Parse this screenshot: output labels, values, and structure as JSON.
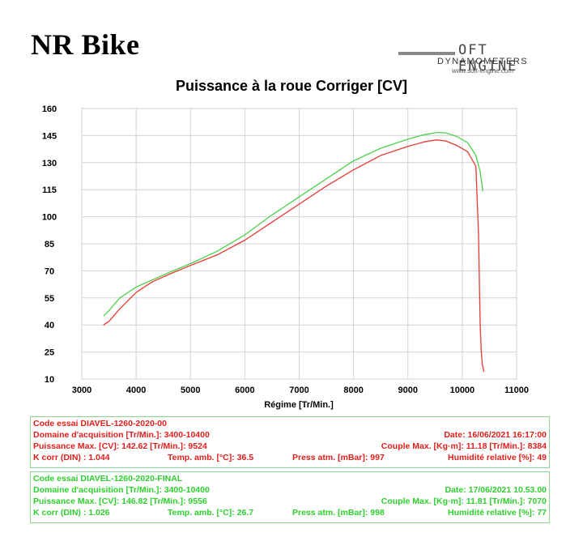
{
  "header": {
    "brand": "NR Bike",
    "logo_name": "OFT ENGINE",
    "logo_sub": "DYNAMOMETERS",
    "logo_url": "www.soft-engine.com"
  },
  "chart_data": {
    "type": "line",
    "title": "Puissance à la roue Corriger [CV]",
    "xlabel": "Régime [Tr/Min.]",
    "ylabel": "",
    "xlim": [
      3000,
      11000
    ],
    "ylim": [
      10,
      160
    ],
    "xticks": [
      3000,
      4000,
      5000,
      6000,
      7000,
      8000,
      9000,
      10000,
      11000
    ],
    "yticks": [
      10,
      25,
      40,
      55,
      70,
      85,
      100,
      115,
      130,
      145,
      160
    ],
    "grid": true,
    "series": [
      {
        "name": "DIAVEL-1260-2020-00",
        "color": "#e83a33",
        "x": [
          3400,
          3500,
          3700,
          4000,
          4300,
          4600,
          5000,
          5500,
          6000,
          6500,
          7000,
          7500,
          8000,
          8500,
          9000,
          9300,
          9524,
          9700,
          9900,
          10100,
          10250,
          10300,
          10330,
          10350,
          10370,
          10400
        ],
        "y": [
          40,
          42,
          49,
          58,
          64,
          68,
          73,
          79,
          87,
          97,
          107,
          117,
          126,
          134,
          139,
          141.5,
          142.6,
          142,
          139.5,
          136,
          128,
          90,
          40,
          25,
          18,
          14
        ]
      },
      {
        "name": "DIAVEL-1260-2020-FINAL",
        "color": "#4ed14e",
        "x": [
          3400,
          3500,
          3700,
          4000,
          4300,
          4600,
          5000,
          5500,
          6000,
          6500,
          7000,
          7500,
          8000,
          8500,
          9000,
          9300,
          9556,
          9700,
          9900,
          10100,
          10250,
          10330,
          10380
        ],
        "y": [
          45,
          48,
          55,
          61,
          65,
          69,
          74,
          81,
          90,
          101,
          111,
          121,
          131,
          138,
          143,
          145.5,
          146.8,
          146.5,
          144.5,
          141,
          134,
          125,
          114
        ]
      }
    ]
  },
  "report_00": {
    "r1_left": "Code essai  DIAVEL-1260-2020-00",
    "r2_left": "Domaine d'acquisition [Tr/Min.]: 3400-10400",
    "r2_right": "Date: 16/06/2021   16:17:00",
    "r3_left": "Puissance Max. [CV]: 142.62   [Tr/Min.]: 9524",
    "r3_right": "Couple Max. [Kg·m]: 11.18   [Tr/Min.]: 8384",
    "r4_a": "K corr  (DIN) : 1.044",
    "r4_b": "Temp. amb. [°C]: 36.5",
    "r4_c": "Press atm. [mBar]: 997",
    "r4_d": "Humidité relative [%]: 49"
  },
  "report_final": {
    "r1_left": "Code essai  DIAVEL-1260-2020-FINAL",
    "r2_left": "Domaine d'acquisition [Tr/Min.]: 3400-10400",
    "r2_right": "Date: 17/06/2021   10.53.00",
    "r3_left": "Puissance Max. [CV]: 146.82   [Tr/Min.]: 9556",
    "r3_right": "Couple Max. [Kg·m]: 11.81   [Tr/Min.]: 7070",
    "r4_a": "K corr  (DIN) : 1.026",
    "r4_b": "Temp. amb. [°C]: 26.7",
    "r4_c": "Press atm. [mBar]: 998",
    "r4_d": "Humidité relative [%]: 77"
  }
}
